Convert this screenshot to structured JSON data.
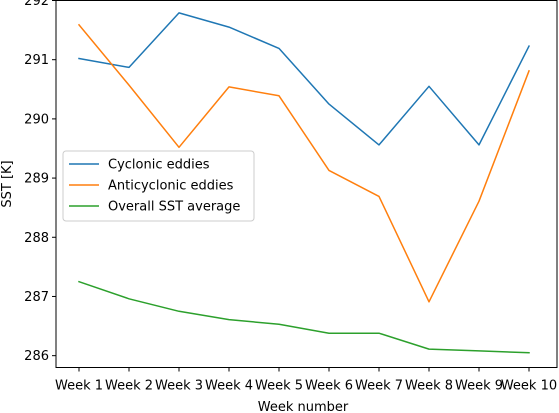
{
  "chart_data": {
    "type": "line",
    "xlabel": "Week number",
    "ylabel": "SST [K]",
    "categories": [
      "Week 1",
      "Week 2",
      "Week 3",
      "Week 4",
      "Week 5",
      "Week 6",
      "Week 7",
      "Week 8",
      "Week 9",
      "Week 10"
    ],
    "ylim": [
      285.8,
      292.0
    ],
    "yticks": [
      286,
      287,
      288,
      289,
      290,
      291,
      292
    ],
    "grid": false,
    "legend_position": "center-left",
    "series": [
      {
        "name": "Cyclonic eddies",
        "color": "#1f77b4",
        "values": [
          291.02,
          290.87,
          291.79,
          291.55,
          291.19,
          290.25,
          289.56,
          290.55,
          289.56,
          291.23
        ]
      },
      {
        "name": "Anticyclonic eddies",
        "color": "#ff7f0e",
        "values": [
          291.59,
          290.57,
          289.52,
          290.54,
          290.39,
          289.13,
          288.69,
          286.91,
          288.61,
          290.81
        ]
      },
      {
        "name": "Overall SST average",
        "color": "#2ca02c",
        "values": [
          287.25,
          286.96,
          286.75,
          286.61,
          286.53,
          286.38,
          286.38,
          286.11,
          286.08,
          286.05
        ]
      }
    ]
  }
}
